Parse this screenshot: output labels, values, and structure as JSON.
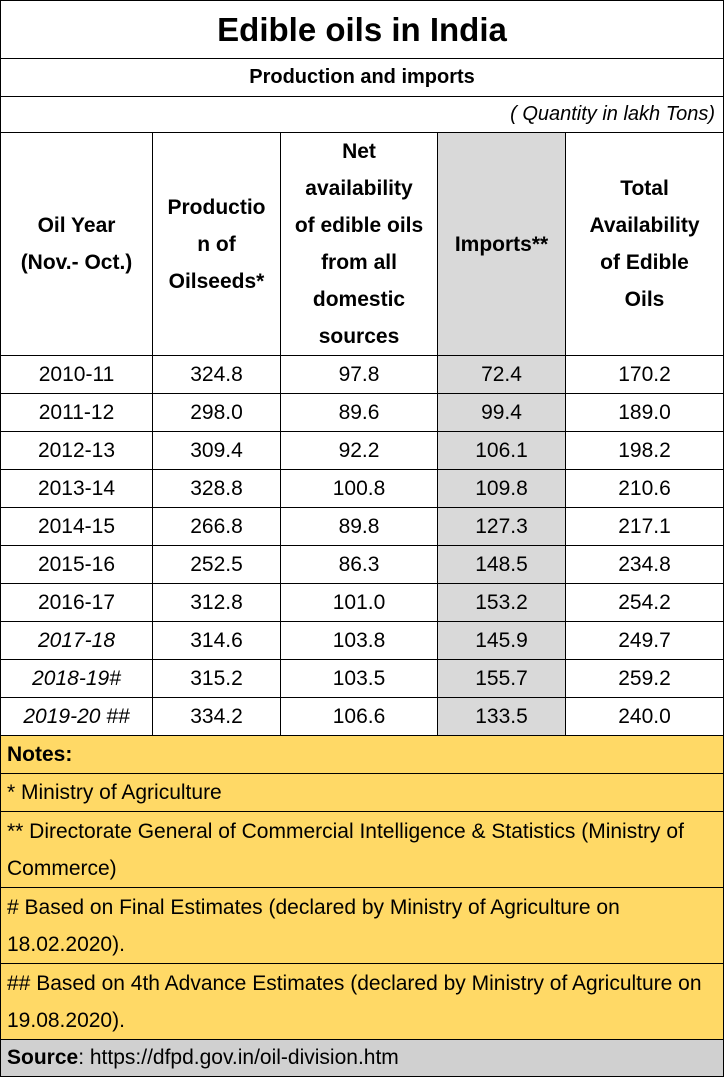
{
  "title": "Edible oils in India",
  "subtitle": "Production and imports",
  "units": "( Quantity in lakh Tons)",
  "columns": {
    "year": [
      "Oil Year",
      "(Nov.- Oct.)"
    ],
    "production": [
      "Productio",
      "n of",
      "Oilseeds*"
    ],
    "net": [
      "Net",
      "availability",
      "of edible oils",
      "from all",
      "domestic",
      "sources"
    ],
    "imports": "Imports**",
    "total": [
      "Total",
      "Availability",
      "of Edible",
      "Oils"
    ]
  },
  "rows": [
    {
      "year": "2010-11",
      "production": "324.8",
      "net": "97.8",
      "imports": "72.4",
      "total": "170.2"
    },
    {
      "year": "2011-12",
      "production": "298.0",
      "net": "89.6",
      "imports": "99.4",
      "total": "189.0"
    },
    {
      "year": "2012-13",
      "production": "309.4",
      "net": "92.2",
      "imports": "106.1",
      "total": "198.2"
    },
    {
      "year": "2013-14",
      "production": "328.8",
      "net": "100.8",
      "imports": "109.8",
      "total": "210.6"
    },
    {
      "year": "2014-15",
      "production": "266.8",
      "net": "89.8",
      "imports": "127.3",
      "total": "217.1"
    },
    {
      "year": "2015-16",
      "production": "252.5",
      "net": "86.3",
      "imports": "148.5",
      "total": "234.8"
    },
    {
      "year": "2016-17",
      "production": "312.8",
      "net": "101.0",
      "imports": "153.2",
      "total": "254.2"
    },
    {
      "year": "2017-18",
      "production": "314.6",
      "net": "103.8",
      "imports": "145.9",
      "total": "249.7"
    },
    {
      "year": "2018-19#",
      "production": "315.2",
      "net": "103.5",
      "imports": "155.7",
      "total": "259.2"
    },
    {
      "year": "2019-20 ##",
      "production": "334.2",
      "net": "106.6",
      "imports": "133.5",
      "total": "240.0"
    }
  ],
  "notes": {
    "heading": "Notes:",
    "n1": "* Ministry of Agriculture",
    "n2": "** Directorate General of Commercial Intelligence & Statistics (Ministry of Commerce)",
    "n3": "# Based on Final Estimates (declared by Ministry of Agriculture on 18.02.2020).",
    "n4": "## Based on 4th Advance Estimates (declared by Ministry of Agriculture on 19.08.2020)."
  },
  "source": {
    "label": "Source",
    "text": ": https://dfpd.gov.in/oil-division.htm"
  },
  "colors": {
    "imports_fill": "#d9d9d9",
    "notes_fill": "#ffd966",
    "source_fill": "#d0d0d0"
  }
}
